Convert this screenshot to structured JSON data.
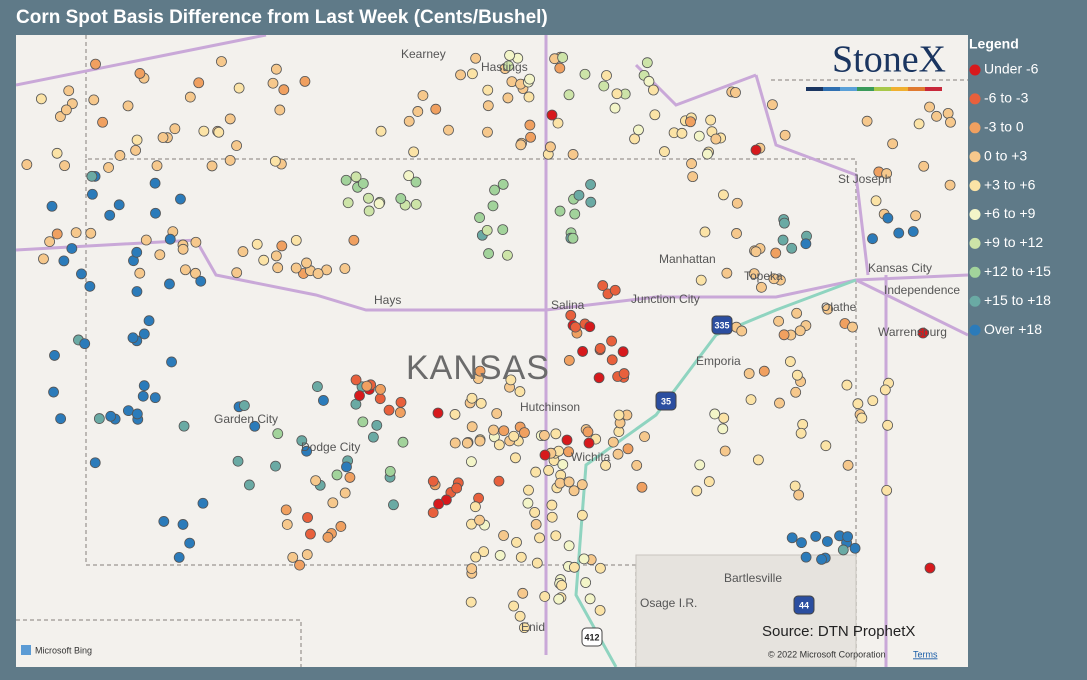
{
  "header": {
    "title": "Corn Spot Basis Difference from Last Week (Cents/Bushel)"
  },
  "logo": "StoneX",
  "legend": {
    "title": "Legend",
    "items": [
      {
        "label": "Under -6",
        "color": "#d7191c"
      },
      {
        "label": "-6 to -3",
        "color": "#e8603c"
      },
      {
        "label": "-3 to 0",
        "color": "#f0a060"
      },
      {
        "label": "0 to +3",
        "color": "#f6c88c"
      },
      {
        "label": "+3 to +6",
        "color": "#fbe3a6"
      },
      {
        "label": "+6 to +9",
        "color": "#f3f5c8"
      },
      {
        "label": "+9 to +12",
        "color": "#cde4a8"
      },
      {
        "label": "+12 to +15",
        "color": "#a2d39b"
      },
      {
        "label": "+15 to +18",
        "color": "#6aaaa4"
      },
      {
        "label": "Over +18",
        "color": "#2b7bba"
      }
    ]
  },
  "map_labels": [
    "Kearney",
    "Hastings",
    "St Joseph",
    "Manhattan",
    "Topeka",
    "Kansas City",
    "Independence",
    "Olathe",
    "Junction City",
    "Hays",
    "Salina",
    "KANSAS",
    "Emporia",
    "Warrensburg",
    "Garden City",
    "Dodge City",
    "Hutchinson",
    "Wichita",
    "Bartlesville",
    "Osage I.R.",
    "Enid"
  ],
  "highway_shields": [
    "335",
    "35",
    "44",
    "412"
  ],
  "source": "Source: DTN ProphetX",
  "attribution": {
    "bing": "Microsoft Bing",
    "copyright": "© 2022 Microsoft Corporation",
    "terms": "Terms"
  }
}
